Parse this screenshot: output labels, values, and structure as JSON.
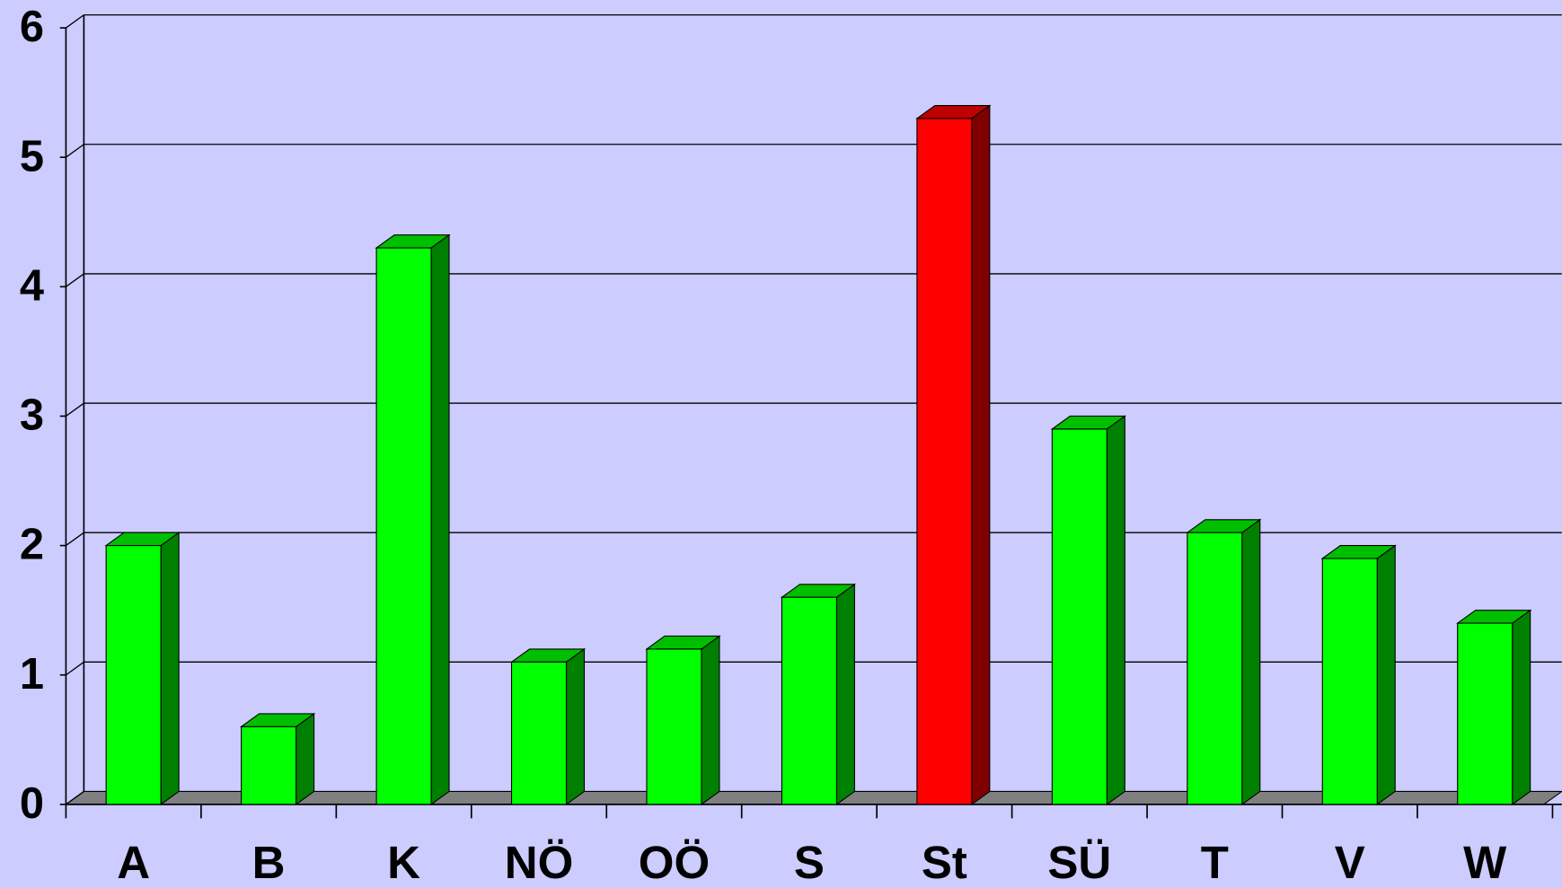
{
  "chart_data": {
    "type": "bar3d",
    "categories": [
      "A",
      "B",
      "K",
      "NÖ",
      "OÖ",
      "S",
      "St",
      "SÜ",
      "T",
      "V",
      "W"
    ],
    "values": [
      2.0,
      0.6,
      4.3,
      1.1,
      1.2,
      1.6,
      5.3,
      2.9,
      2.1,
      1.9,
      1.4
    ],
    "colors": [
      "#00ff00",
      "#00ff00",
      "#00ff00",
      "#00ff00",
      "#00ff00",
      "#00ff00",
      "#ff0000",
      "#00ff00",
      "#00ff00",
      "#00ff00",
      "#00ff00"
    ],
    "ylim": [
      0,
      6
    ],
    "yticks": [
      0,
      1,
      2,
      3,
      4,
      5,
      6
    ],
    "grid": true
  }
}
